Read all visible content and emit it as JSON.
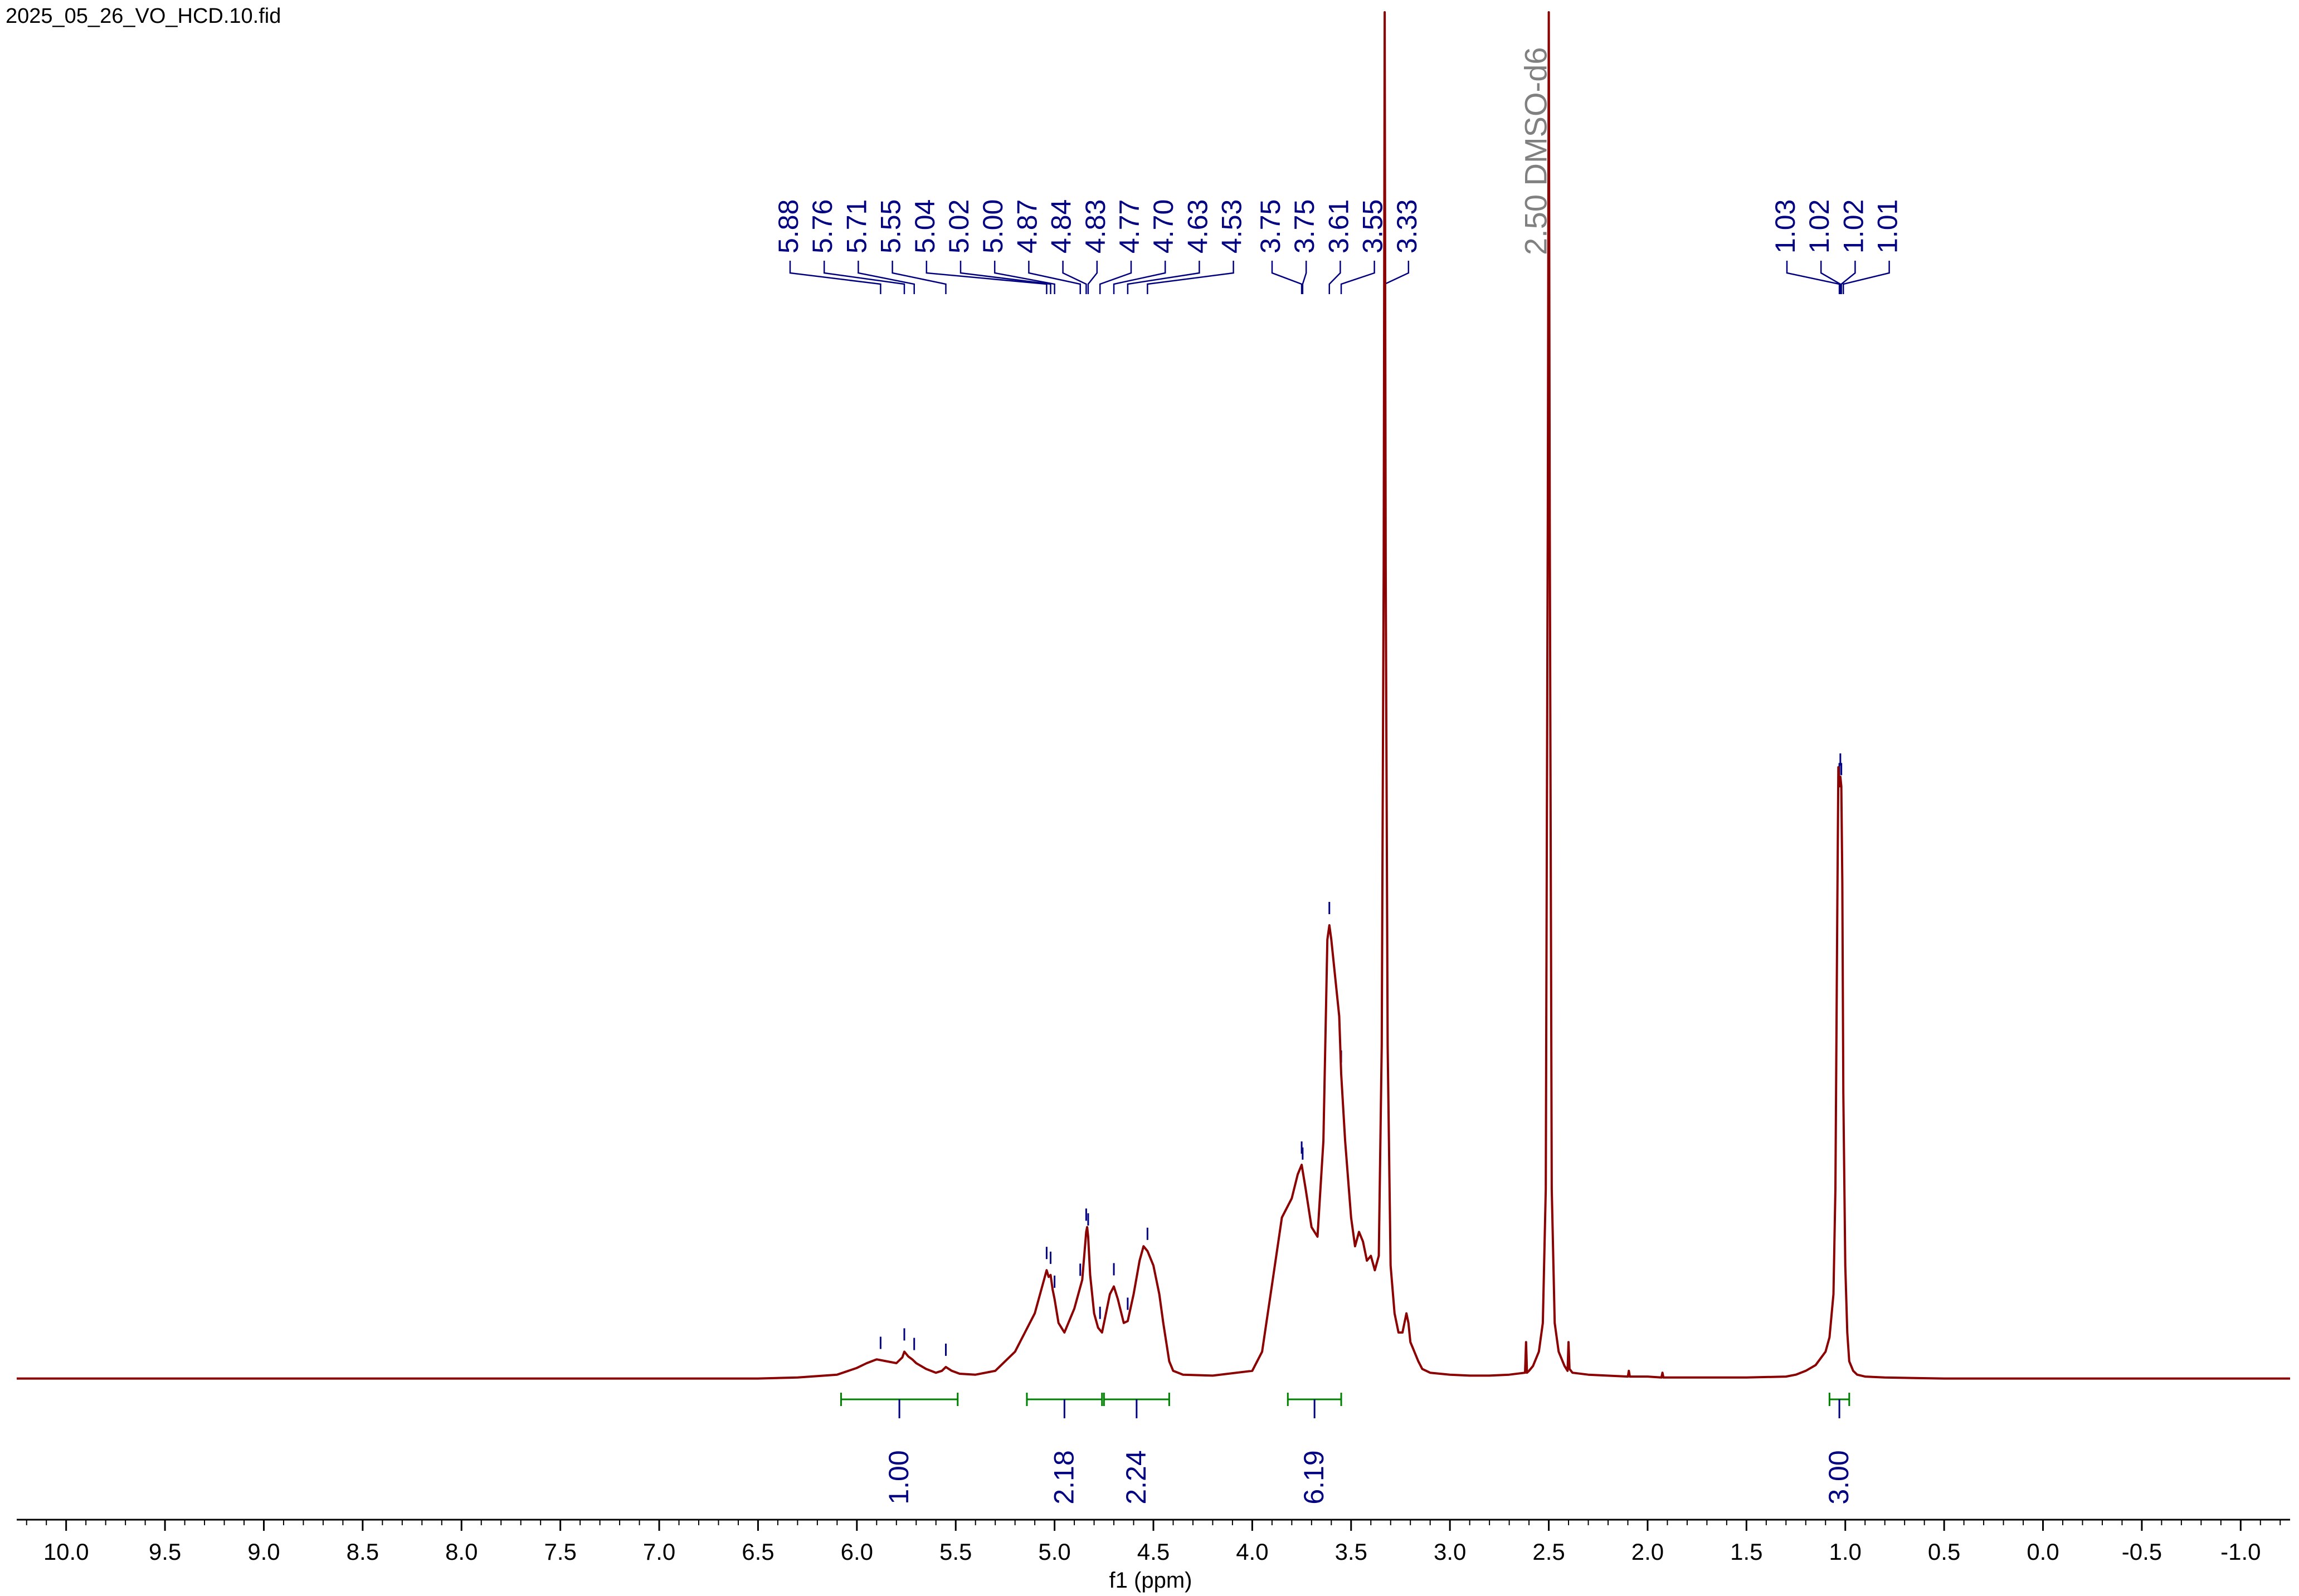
{
  "file_title": "2025_05_26_VO_HCD.10.fid",
  "colors": {
    "spectrum": "#8b0000",
    "peak_label": "#000080",
    "integral": "#008000",
    "solvent": "#808080",
    "axis": "#000000"
  },
  "chart_data": {
    "type": "line",
    "xlabel": "f1 (ppm)",
    "xlim": [
      10.25,
      -1.25
    ],
    "x_ticks": [
      10.0,
      9.5,
      9.0,
      8.5,
      8.0,
      7.5,
      7.0,
      6.5,
      6.0,
      5.5,
      5.0,
      4.5,
      4.0,
      3.5,
      3.0,
      2.5,
      2.0,
      1.5,
      1.0,
      0.5,
      0.0,
      -0.5,
      -1.0
    ],
    "x_tick_labels": [
      "10.0",
      "9.5",
      "9.0",
      "8.5",
      "8.0",
      "7.5",
      "7.0",
      "6.5",
      "6.0",
      "5.5",
      "5.0",
      "4.5",
      "4.0",
      "3.5",
      "3.0",
      "2.5",
      "2.0",
      "1.5",
      "1.0",
      "0.5",
      "0.0",
      "-0.5",
      "-1.0"
    ],
    "peak_labels": [
      {
        "label": "5.88",
        "ppm": 5.88
      },
      {
        "label": "5.76",
        "ppm": 5.76
      },
      {
        "label": "5.71",
        "ppm": 5.71
      },
      {
        "label": "5.55",
        "ppm": 5.55
      },
      {
        "label": "5.04",
        "ppm": 5.04
      },
      {
        "label": "5.02",
        "ppm": 5.02
      },
      {
        "label": "5.00",
        "ppm": 5.0
      },
      {
        "label": "4.87",
        "ppm": 4.87
      },
      {
        "label": "4.84",
        "ppm": 4.84
      },
      {
        "label": "4.83",
        "ppm": 4.83
      },
      {
        "label": "4.77",
        "ppm": 4.77
      },
      {
        "label": "4.70",
        "ppm": 4.7
      },
      {
        "label": "4.63",
        "ppm": 4.63
      },
      {
        "label": "4.53",
        "ppm": 4.53
      },
      {
        "label": "3.75",
        "ppm": 3.75
      },
      {
        "label": "3.75",
        "ppm": 3.745
      },
      {
        "label": "3.61",
        "ppm": 3.61
      },
      {
        "label": "3.55",
        "ppm": 3.55
      },
      {
        "label": "3.33",
        "ppm": 3.33
      },
      {
        "label": "1.03",
        "ppm": 1.03
      },
      {
        "label": "1.02",
        "ppm": 1.025
      },
      {
        "label": "1.02",
        "ppm": 1.02
      },
      {
        "label": "1.01",
        "ppm": 1.01
      }
    ],
    "solvent_label": {
      "label": "2.50 DMSO-d6",
      "ppm": 2.5
    },
    "integrals": [
      {
        "value": "1.00",
        "from": 6.08,
        "to": 5.49
      },
      {
        "value": "2.18",
        "from": 5.14,
        "to": 4.76
      },
      {
        "value": "2.24",
        "from": 4.75,
        "to": 4.42
      },
      {
        "value": "6.19",
        "from": 3.82,
        "to": 3.55
      },
      {
        "value": "3.00",
        "from": 1.08,
        "to": 0.98
      }
    ],
    "series": [
      {
        "x": [
          10.25,
          6.5,
          6.3,
          6.1,
          6.0,
          5.95,
          5.9,
          5.85,
          5.8,
          5.77,
          5.76,
          5.74,
          5.72,
          5.7,
          5.65,
          5.6,
          5.57,
          5.55,
          5.52,
          5.48,
          5.4,
          5.3,
          5.2,
          5.15,
          5.1,
          5.06,
          5.04,
          5.03,
          5.02,
          5.01,
          5.0,
          4.98,
          4.95,
          4.9,
          4.88,
          4.86,
          4.84,
          4.835,
          4.83,
          4.82,
          4.8,
          4.78,
          4.76,
          4.74,
          4.72,
          4.7,
          4.68,
          4.65,
          4.63,
          4.6,
          4.57,
          4.55,
          4.53,
          4.5,
          4.47,
          4.45,
          4.42,
          4.4,
          4.35,
          4.2,
          4.0,
          3.95,
          3.9,
          3.85,
          3.8,
          3.77,
          3.75,
          3.73,
          3.7,
          3.67,
          3.64,
          3.62,
          3.61,
          3.6,
          3.58,
          3.56,
          3.55,
          3.53,
          3.5,
          3.48,
          3.46,
          3.44,
          3.42,
          3.4,
          3.38,
          3.36,
          3.345,
          3.335,
          3.33,
          3.325,
          3.315,
          3.3,
          3.28,
          3.26,
          3.24,
          3.22,
          3.21,
          3.2,
          3.19,
          3.18,
          3.16,
          3.14,
          3.1,
          3.0,
          2.9,
          2.8,
          2.7,
          2.62,
          2.615,
          2.61,
          2.6,
          2.58,
          2.55,
          2.53,
          2.515,
          2.505,
          2.5,
          2.495,
          2.485,
          2.47,
          2.45,
          2.42,
          2.405,
          2.4,
          2.395,
          2.38,
          2.3,
          2.1,
          2.095,
          2.09,
          2.0,
          1.93,
          1.925,
          1.92,
          1.8,
          1.5,
          1.3,
          1.25,
          1.2,
          1.15,
          1.1,
          1.08,
          1.06,
          1.05,
          1.04,
          1.035,
          1.03,
          1.025,
          1.02,
          1.015,
          1.01,
          1.0,
          0.99,
          0.98,
          0.96,
          0.94,
          0.9,
          0.8,
          0.5,
          0.0,
          -0.5,
          -1.0,
          -1.25
        ],
        "y": [
          0.002,
          0.002,
          0.003,
          0.006,
          0.013,
          0.018,
          0.022,
          0.02,
          0.018,
          0.024,
          0.03,
          0.025,
          0.022,
          0.018,
          0.012,
          0.008,
          0.01,
          0.014,
          0.01,
          0.007,
          0.006,
          0.01,
          0.03,
          0.05,
          0.07,
          0.1,
          0.115,
          0.108,
          0.11,
          0.095,
          0.085,
          0.06,
          0.05,
          0.075,
          0.09,
          0.105,
          0.155,
          0.16,
          0.15,
          0.11,
          0.07,
          0.055,
          0.05,
          0.07,
          0.09,
          0.098,
          0.085,
          0.06,
          0.062,
          0.09,
          0.125,
          0.14,
          0.135,
          0.12,
          0.09,
          0.06,
          0.02,
          0.01,
          0.006,
          0.005,
          0.01,
          0.03,
          0.1,
          0.17,
          0.19,
          0.215,
          0.225,
          0.2,
          0.16,
          0.15,
          0.25,
          0.46,
          0.475,
          0.46,
          0.42,
          0.38,
          0.32,
          0.25,
          0.17,
          0.14,
          0.155,
          0.145,
          0.125,
          0.13,
          0.115,
          0.13,
          0.35,
          0.85,
          1.5,
          0.85,
          0.35,
          0.12,
          0.07,
          0.05,
          0.05,
          0.07,
          0.06,
          0.04,
          0.035,
          0.03,
          0.02,
          0.012,
          0.008,
          0.006,
          0.005,
          0.005,
          0.006,
          0.008,
          0.04,
          0.008,
          0.01,
          0.015,
          0.03,
          0.06,
          0.2,
          0.9,
          1.5,
          0.9,
          0.2,
          0.06,
          0.03,
          0.015,
          0.01,
          0.04,
          0.012,
          0.008,
          0.006,
          0.004,
          0.01,
          0.004,
          0.004,
          0.003,
          0.008,
          0.003,
          0.003,
          0.003,
          0.004,
          0.006,
          0.01,
          0.016,
          0.03,
          0.045,
          0.09,
          0.2,
          0.5,
          0.64,
          0.62,
          0.63,
          0.62,
          0.52,
          0.3,
          0.12,
          0.05,
          0.02,
          0.01,
          0.006,
          0.004,
          0.003,
          0.002,
          0.002,
          0.002,
          0.002,
          0.002
        ]
      }
    ]
  }
}
